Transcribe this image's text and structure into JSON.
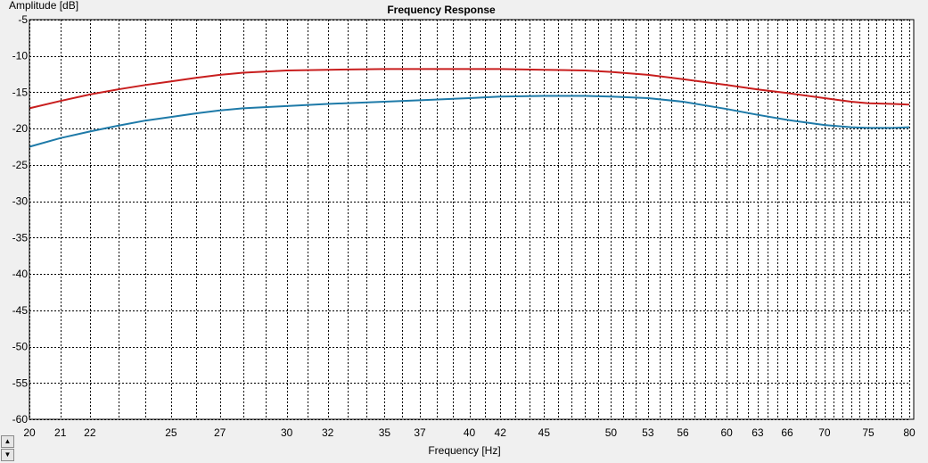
{
  "chart_data": {
    "type": "line",
    "title": "Frequency Response",
    "xlabel": "Frequency [Hz]",
    "ylabel": "Amplitude [dB]",
    "xscale": "log",
    "xlim": [
      20,
      80
    ],
    "ylim": [
      -60,
      -5
    ],
    "y_ticks": [
      -5,
      -10,
      -15,
      -20,
      -25,
      -30,
      -35,
      -40,
      -45,
      -50,
      -55,
      -60
    ],
    "x_tick_labels": [
      20,
      21,
      22,
      25,
      27,
      30,
      32,
      35,
      37,
      40,
      42,
      45,
      50,
      53,
      56,
      60,
      63,
      66,
      70,
      75,
      80
    ],
    "grid": true,
    "series": [
      {
        "color": "#c81e1e",
        "x": [
          20,
          21,
          22,
          23,
          24,
          25,
          26,
          27,
          28,
          30,
          32,
          35,
          37,
          40,
          42,
          45,
          48,
          50,
          53,
          56,
          60,
          63,
          66,
          70,
          73,
          75,
          78,
          80
        ],
        "y": [
          -17.2,
          -16.2,
          -15.3,
          -14.6,
          -14.0,
          -13.5,
          -13.0,
          -12.6,
          -12.3,
          -12.0,
          -11.9,
          -11.8,
          -11.8,
          -11.8,
          -11.8,
          -11.9,
          -12.0,
          -12.2,
          -12.6,
          -13.2,
          -14.0,
          -14.6,
          -15.1,
          -15.8,
          -16.3,
          -16.5,
          -16.6,
          -16.7
        ]
      },
      {
        "color": "#1e7aa8",
        "x": [
          20,
          21,
          22,
          23,
          24,
          25,
          26,
          27,
          28,
          30,
          32,
          35,
          37,
          40,
          42,
          45,
          48,
          50,
          53,
          56,
          60,
          63,
          66,
          70,
          73,
          75,
          78,
          80
        ],
        "y": [
          -22.5,
          -21.3,
          -20.4,
          -19.6,
          -18.9,
          -18.4,
          -17.9,
          -17.5,
          -17.2,
          -16.9,
          -16.6,
          -16.3,
          -16.1,
          -15.8,
          -15.6,
          -15.5,
          -15.5,
          -15.6,
          -15.8,
          -16.3,
          -17.3,
          -18.1,
          -18.8,
          -19.5,
          -19.8,
          -19.9,
          -19.9,
          -19.8
        ]
      }
    ]
  },
  "controls": {
    "scroll_up": "▲",
    "scroll_down": "▼"
  }
}
